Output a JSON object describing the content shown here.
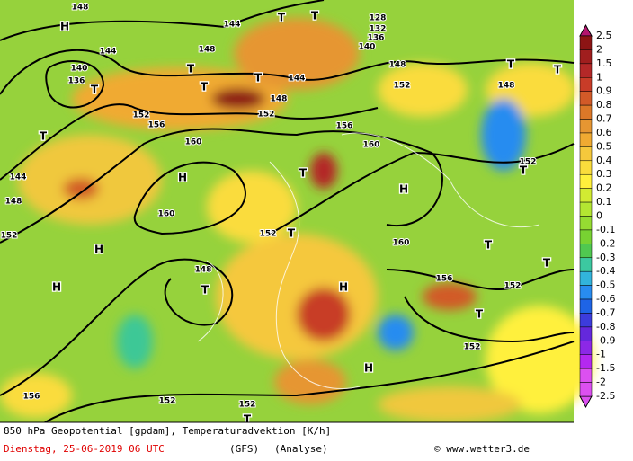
{
  "map_labels": [
    "H",
    "T",
    "T",
    "144",
    "148",
    "128",
    "132",
    "136",
    "140",
    "144",
    "140",
    "136",
    "T",
    "148",
    "T",
    "T",
    "144",
    "T",
    "148",
    "152",
    "T",
    "T",
    "148",
    "152",
    "156",
    "148",
    "152",
    "160",
    "T",
    "156",
    "160",
    "T",
    "144",
    "H",
    "H",
    "152",
    "T",
    "160",
    "148",
    "152",
    "152",
    "T",
    "160",
    "T",
    "T",
    "H",
    "H",
    "148",
    "T",
    "H",
    "156",
    "152",
    "T",
    "152",
    "H",
    "156",
    "152",
    "152",
    "T"
  ],
  "legend": {
    "labels": [
      "2.5",
      "2",
      "1.5",
      "1",
      "0.9",
      "0.8",
      "0.7",
      "0.6",
      "0.5",
      "0.4",
      "0.3",
      "0.2",
      "0.1",
      "0",
      "-0.1",
      "-0.2",
      "-0.3",
      "-0.4",
      "-0.5",
      "-0.6",
      "-0.7",
      "-0.8",
      "-0.9",
      "-1",
      "-1.5",
      "-2",
      "-2.5"
    ],
    "colors": [
      "#b4146e",
      "#8c1414",
      "#a01e1e",
      "#b42828",
      "#c83c28",
      "#d25a28",
      "#dc7828",
      "#e69632",
      "#f0aa32",
      "#f5c83c",
      "#fadc3c",
      "#fff03c",
      "#d2eb32",
      "#b4e632",
      "#96dc32",
      "#78d232",
      "#50c850",
      "#3cc8a0",
      "#32b4dc",
      "#288cf0",
      "#1e64e6",
      "#3c3cdc",
      "#6428dc",
      "#8c28e6",
      "#b428f0",
      "#dc50f0"
    ]
  },
  "footer": {
    "title": "850 hPa Geopotential [gpdam], Temperaturadvektion [K/h]",
    "date": "Dienstag, 25-06-2019  06 UTC",
    "model": "(GFS)",
    "run": "(Analyse)",
    "credit": "© www.wetter3.de"
  }
}
